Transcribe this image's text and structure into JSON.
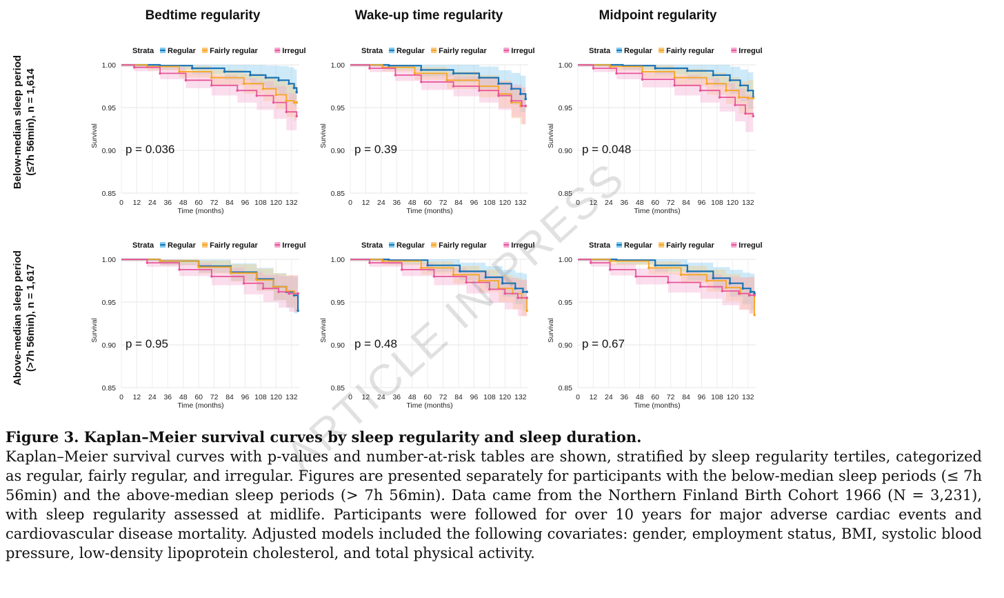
{
  "column_titles": [
    "Bedtime regularity",
    "Wake-up time regularity",
    "Midpoint regularity"
  ],
  "row_labels": [
    {
      "line1": "Below-median sleep period",
      "line2": "(≤7h 56min), n = 1,614"
    },
    {
      "line1": "Above-median sleep period",
      "line2": "(>7h  56min), n = 1,617"
    }
  ],
  "legend": {
    "title": "Strata",
    "items": [
      "Regular",
      "Fairly regular",
      "Irregular"
    ]
  },
  "colors": {
    "regular": "#1a73b5",
    "fairly_regular": "#f5a623",
    "irregular": "#e8559a",
    "regular_band": "#7ec8ee",
    "fairly_band": "#f9c77a",
    "irregular_band": "#f4a7cf"
  },
  "watermark": "ARTICLE IN PRESS",
  "chart_data": [
    {
      "type": "line",
      "row": 0,
      "col": 0,
      "title": "Bedtime regularity",
      "p_value": "p = 0.036",
      "xlabel": "Time (months)",
      "ylabel": "Survival",
      "xlim": [
        0,
        138
      ],
      "ylim": [
        0.85,
        1.0
      ],
      "x_ticks": [
        0,
        12,
        24,
        36,
        48,
        60,
        72,
        84,
        96,
        108,
        120,
        132
      ],
      "y_ticks": [
        "0.85",
        "0.90",
        "0.95",
        "1.00"
      ],
      "series": [
        {
          "name": "Regular",
          "x": [
            0,
            30,
            55,
            80,
            100,
            112,
            122,
            130,
            134,
            136
          ],
          "y": [
            1.0,
            0.999,
            0.996,
            0.992,
            0.988,
            0.985,
            0.982,
            0.978,
            0.973,
            0.968
          ]
        },
        {
          "name": "Fairly regular",
          "x": [
            0,
            20,
            45,
            70,
            95,
            110,
            120,
            128,
            134,
            136
          ],
          "y": [
            1.0,
            0.998,
            0.992,
            0.985,
            0.978,
            0.972,
            0.965,
            0.958,
            0.956,
            0.956
          ]
        },
        {
          "name": "Irregular",
          "x": [
            0,
            10,
            30,
            50,
            70,
            90,
            105,
            118,
            128,
            136
          ],
          "y": [
            1.0,
            0.997,
            0.99,
            0.982,
            0.976,
            0.97,
            0.964,
            0.956,
            0.945,
            0.94
          ]
        }
      ]
    },
    {
      "type": "line",
      "row": 0,
      "col": 1,
      "title": "Wake-up time regularity",
      "p_value": "p = 0.39",
      "xlabel": "Time (months)",
      "ylabel": "Survival",
      "xlim": [
        0,
        138
      ],
      "ylim": [
        0.85,
        1.0
      ],
      "x_ticks": [
        0,
        12,
        24,
        36,
        48,
        60,
        72,
        84,
        96,
        108,
        120,
        132
      ],
      "y_ticks": [
        "0.85",
        "0.90",
        "0.95",
        "1.00"
      ],
      "series": [
        {
          "name": "Regular",
          "x": [
            0,
            30,
            55,
            80,
            100,
            115,
            125,
            132,
            136
          ],
          "y": [
            1.0,
            0.999,
            0.994,
            0.99,
            0.985,
            0.978,
            0.972,
            0.966,
            0.96
          ]
        },
        {
          "name": "Fairly regular",
          "x": [
            0,
            25,
            50,
            75,
            100,
            115,
            125,
            132,
            136
          ],
          "y": [
            1.0,
            0.997,
            0.99,
            0.982,
            0.975,
            0.966,
            0.956,
            0.952,
            0.952
          ]
        },
        {
          "name": "Irregular",
          "x": [
            0,
            15,
            35,
            55,
            80,
            100,
            115,
            125,
            133,
            136
          ],
          "y": [
            1.0,
            0.996,
            0.988,
            0.98,
            0.975,
            0.97,
            0.964,
            0.958,
            0.952,
            0.952
          ]
        }
      ]
    },
    {
      "type": "line",
      "row": 0,
      "col": 2,
      "title": "Midpoint regularity",
      "p_value": "p = 0.048",
      "xlabel": "Time (months)",
      "ylabel": "Survival",
      "xlim": [
        0,
        138
      ],
      "ylim": [
        0.85,
        1.0
      ],
      "x_ticks": [
        0,
        12,
        24,
        36,
        48,
        60,
        72,
        84,
        96,
        108,
        120,
        132
      ],
      "y_ticks": [
        "0.85",
        "0.90",
        "0.95",
        "1.00"
      ],
      "series": [
        {
          "name": "Regular",
          "x": [
            0,
            35,
            60,
            85,
            105,
            118,
            126,
            132,
            136
          ],
          "y": [
            1.0,
            0.999,
            0.996,
            0.993,
            0.988,
            0.982,
            0.976,
            0.97,
            0.962
          ]
        },
        {
          "name": "Fairly regular",
          "x": [
            0,
            25,
            50,
            75,
            100,
            115,
            125,
            132,
            136
          ],
          "y": [
            1.0,
            0.998,
            0.992,
            0.985,
            0.978,
            0.97,
            0.962,
            0.961,
            0.961
          ]
        },
        {
          "name": "Irregular",
          "x": [
            0,
            12,
            30,
            50,
            75,
            95,
            110,
            122,
            130,
            136
          ],
          "y": [
            1.0,
            0.996,
            0.99,
            0.983,
            0.976,
            0.97,
            0.962,
            0.953,
            0.943,
            0.94
          ]
        }
      ]
    },
    {
      "type": "line",
      "row": 1,
      "col": 0,
      "title": "Bedtime regularity",
      "p_value": "p = 0.95",
      "xlabel": "Time (months)",
      "ylabel": "Survival",
      "xlim": [
        0,
        138
      ],
      "ylim": [
        0.85,
        1.0
      ],
      "x_ticks": [
        0,
        12,
        24,
        36,
        48,
        60,
        72,
        84,
        96,
        108,
        120,
        132
      ],
      "y_ticks": [
        "0.85",
        "0.90",
        "0.95",
        "1.00"
      ],
      "series": [
        {
          "name": "Regular",
          "x": [
            0,
            30,
            60,
            85,
            105,
            118,
            128,
            134,
            137
          ],
          "y": [
            1.0,
            0.998,
            0.992,
            0.985,
            0.977,
            0.968,
            0.962,
            0.958,
            0.94
          ]
        },
        {
          "name": "Fairly regular",
          "x": [
            0,
            30,
            60,
            85,
            105,
            118,
            128,
            134,
            137
          ],
          "y": [
            1.0,
            0.998,
            0.991,
            0.984,
            0.976,
            0.968,
            0.963,
            0.96,
            0.96
          ]
        },
        {
          "name": "Irregular",
          "x": [
            0,
            20,
            45,
            70,
            95,
            110,
            122,
            130,
            137
          ],
          "y": [
            1.0,
            0.996,
            0.988,
            0.98,
            0.972,
            0.966,
            0.962,
            0.96,
            0.96
          ]
        }
      ]
    },
    {
      "type": "line",
      "row": 1,
      "col": 1,
      "title": "Wake-up time regularity",
      "p_value": "p = 0.48",
      "xlabel": "Time (months)",
      "ylabel": "Survival",
      "xlim": [
        0,
        138
      ],
      "ylim": [
        0.85,
        1.0
      ],
      "x_ticks": [
        0,
        12,
        24,
        36,
        48,
        60,
        72,
        84,
        96,
        108,
        120,
        132
      ],
      "y_ticks": [
        "0.85",
        "0.90",
        "0.95",
        "1.00"
      ],
      "series": [
        {
          "name": "Regular",
          "x": [
            0,
            30,
            60,
            85,
            105,
            118,
            128,
            134,
            137
          ],
          "y": [
            1.0,
            0.999,
            0.993,
            0.986,
            0.979,
            0.972,
            0.966,
            0.962,
            0.962
          ]
        },
        {
          "name": "Fairly regular",
          "x": [
            0,
            25,
            55,
            80,
            100,
            115,
            126,
            133,
            137
          ],
          "y": [
            1.0,
            0.998,
            0.99,
            0.982,
            0.975,
            0.966,
            0.96,
            0.955,
            0.94
          ]
        },
        {
          "name": "Irregular",
          "x": [
            0,
            15,
            40,
            65,
            90,
            108,
            120,
            130,
            137
          ],
          "y": [
            1.0,
            0.996,
            0.988,
            0.98,
            0.973,
            0.965,
            0.96,
            0.955,
            0.955
          ]
        }
      ]
    },
    {
      "type": "line",
      "row": 1,
      "col": 2,
      "title": "Midpoint regularity",
      "p_value": "p = 0.67",
      "xlabel": "Time (months)",
      "ylabel": "Survival",
      "xlim": [
        0,
        138
      ],
      "ylim": [
        0.85,
        1.0
      ],
      "x_ticks": [
        0,
        12,
        24,
        36,
        48,
        60,
        72,
        84,
        96,
        108,
        120,
        132
      ],
      "y_ticks": [
        "0.85",
        "0.90",
        "0.95",
        "1.00"
      ],
      "series": [
        {
          "name": "Regular",
          "x": [
            0,
            30,
            60,
            85,
            105,
            118,
            128,
            134,
            137
          ],
          "y": [
            1.0,
            0.999,
            0.993,
            0.986,
            0.978,
            0.972,
            0.966,
            0.962,
            0.96
          ]
        },
        {
          "name": "Fairly regular",
          "x": [
            0,
            25,
            55,
            80,
            100,
            115,
            126,
            133,
            137
          ],
          "y": [
            1.0,
            0.998,
            0.99,
            0.982,
            0.975,
            0.967,
            0.96,
            0.958,
            0.935
          ]
        },
        {
          "name": "Irregular",
          "x": [
            0,
            10,
            25,
            45,
            70,
            95,
            112,
            125,
            133,
            137
          ],
          "y": [
            1.0,
            0.996,
            0.988,
            0.98,
            0.973,
            0.968,
            0.963,
            0.96,
            0.958,
            0.958
          ]
        }
      ]
    }
  ],
  "caption": {
    "title": "Figure 3. Kaplan–Meier survival curves by sleep regularity and sleep duration.",
    "body": "Kaplan–Meier survival curves with p-values and number-at-risk tables are shown, stratified by sleep regularity tertiles, categorized as regular, fairly regular, and irregular. Figures are presented separately for participants with the below-median sleep periods (≤ 7h 56min) and the above-median sleep periods (> 7h 56min). Data came from the Northern Finland Birth Cohort 1966 (N = 3,231), with sleep regularity assessed at midlife. Participants were followed for over 10 years for major adverse cardiac events and cardiovascular disease mortality. Adjusted models included the following covariates: gender, employment status, BMI, systolic blood pressure, low-density lipoprotein cholesterol, and total physical activity."
  }
}
